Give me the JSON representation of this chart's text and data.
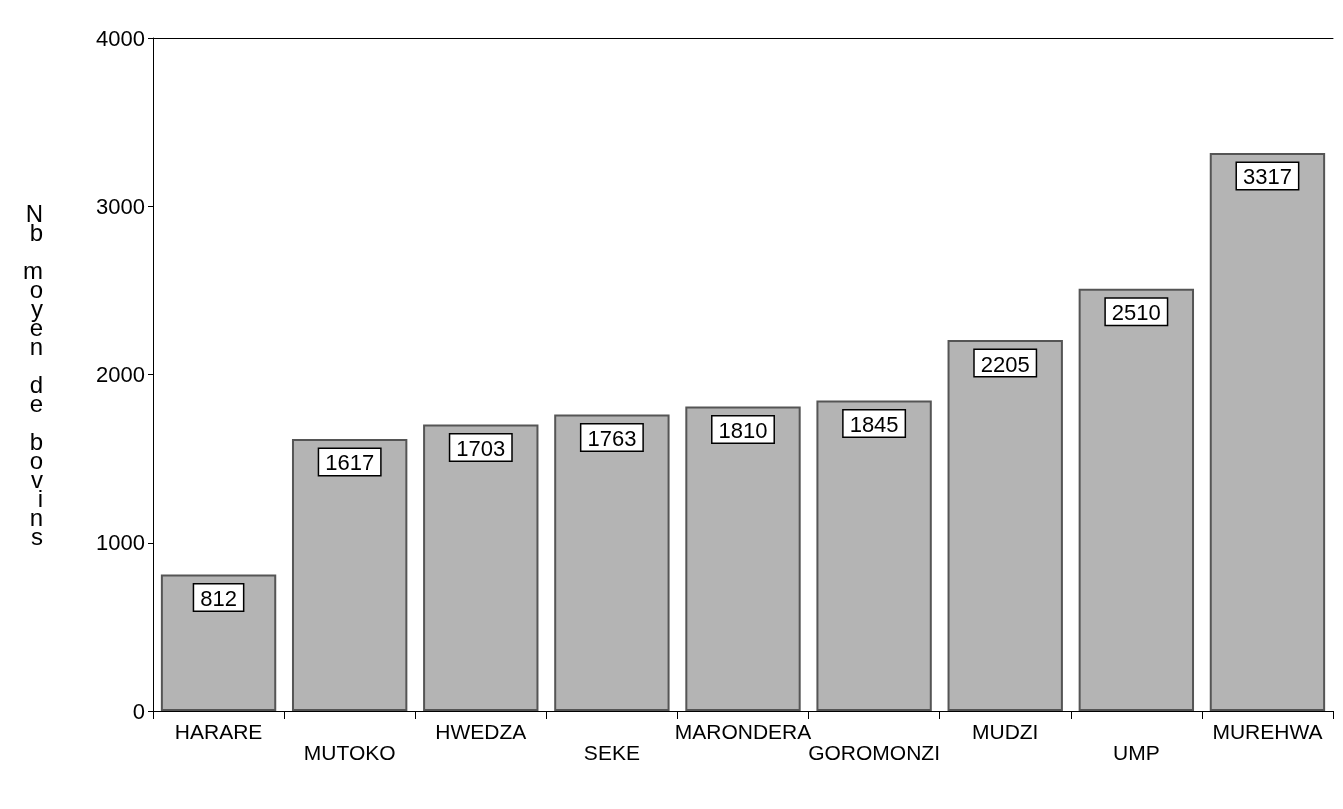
{
  "chart_data": {
    "type": "bar",
    "ylabel": "Nb moyen de bovins",
    "categories": [
      "HARARE",
      "MUTOKO",
      "HWEDZA",
      "SEKE",
      "MARONDERA",
      "GOROMONZI",
      "MUDZI",
      "UMP",
      "MUREHWA"
    ],
    "values": [
      812,
      1617,
      1703,
      1763,
      1810,
      1845,
      2205,
      2510,
      3317
    ],
    "color": "#b4b4b4",
    "ylim": [
      0,
      4000
    ],
    "yticks": [
      0,
      1000,
      2000,
      3000,
      4000
    ],
    "data_labels": true
  }
}
